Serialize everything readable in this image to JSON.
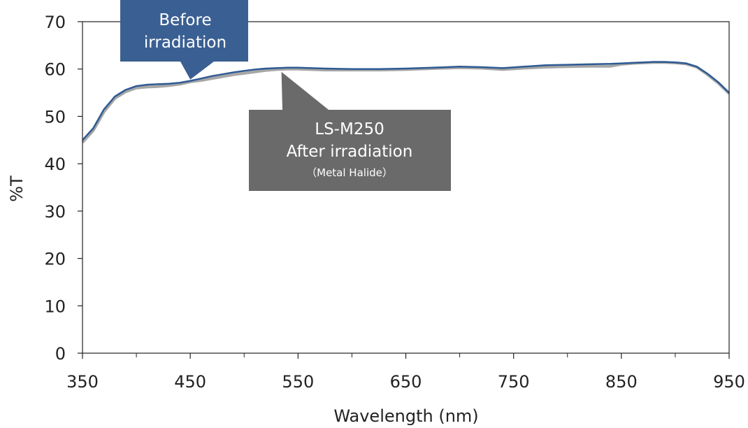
{
  "chart_data": {
    "type": "line",
    "xlabel": "Wavelength (nm)",
    "ylabel": "%T",
    "xlim": [
      350,
      950
    ],
    "ylim": [
      0,
      70
    ],
    "x_ticks": [
      350,
      450,
      550,
      650,
      750,
      850,
      950
    ],
    "y_ticks": [
      0,
      10,
      20,
      30,
      40,
      50,
      60,
      70
    ],
    "grid": false,
    "legend": "none",
    "series": [
      {
        "color": "#2e5a94",
        "x": [
          350,
          360,
          370,
          380,
          390,
          400,
          410,
          420,
          430,
          440,
          450,
          460,
          470,
          480,
          490,
          500,
          510,
          520,
          530,
          540,
          550,
          575,
          600,
          625,
          650,
          675,
          700,
          720,
          740,
          760,
          780,
          800,
          820,
          840,
          850,
          860,
          870,
          880,
          890,
          900,
          910,
          920,
          930,
          940,
          950
        ],
        "y": [
          45,
          47.5,
          51.5,
          54.2,
          55.6,
          56.4,
          56.7,
          56.8,
          56.9,
          57.1,
          57.5,
          58.0,
          58.5,
          58.9,
          59.3,
          59.6,
          59.9,
          60.1,
          60.2,
          60.3,
          60.3,
          60.1,
          60.0,
          60.0,
          60.1,
          60.3,
          60.5,
          60.4,
          60.2,
          60.5,
          60.8,
          60.9,
          61.0,
          61.1,
          61.2,
          61.3,
          61.4,
          61.5,
          61.5,
          61.4,
          61.2,
          60.5,
          59.0,
          57.2,
          55.0
        ]
      },
      {
        "color": "#a6a6a6",
        "x": [
          350,
          360,
          370,
          380,
          390,
          400,
          410,
          420,
          430,
          440,
          450,
          460,
          470,
          480,
          490,
          500,
          510,
          520,
          530,
          540,
          550,
          575,
          600,
          625,
          650,
          675,
          700,
          720,
          740,
          760,
          780,
          800,
          820,
          840,
          850,
          860,
          870,
          880,
          890,
          900,
          910,
          920,
          930,
          940,
          950
        ],
        "y": [
          44.5,
          47.0,
          51.0,
          53.8,
          55.2,
          56.0,
          56.2,
          56.3,
          56.5,
          56.8,
          57.3,
          57.6,
          58.0,
          58.4,
          58.8,
          59.1,
          59.4,
          59.7,
          59.9,
          60.0,
          60.0,
          59.8,
          59.8,
          59.8,
          59.9,
          60.1,
          60.3,
          60.2,
          59.9,
          60.2,
          60.4,
          60.5,
          60.6,
          60.6,
          61.0,
          61.2,
          61.3,
          61.4,
          61.4,
          61.3,
          61.1,
          60.4,
          58.8,
          57.0,
          54.8
        ]
      }
    ],
    "annotations": [
      {
        "lines": [
          "Before",
          "irradiation"
        ],
        "points_to": {
          "x": 450,
          "y": 57.5
        },
        "color": "#3a5f92"
      },
      {
        "lines": [
          "LS-M250",
          "After irradiation"
        ],
        "subline": "（Metal Halide）",
        "points_to": {
          "x": 545,
          "y": 60.0
        },
        "color": "#6a6a6a"
      }
    ]
  }
}
